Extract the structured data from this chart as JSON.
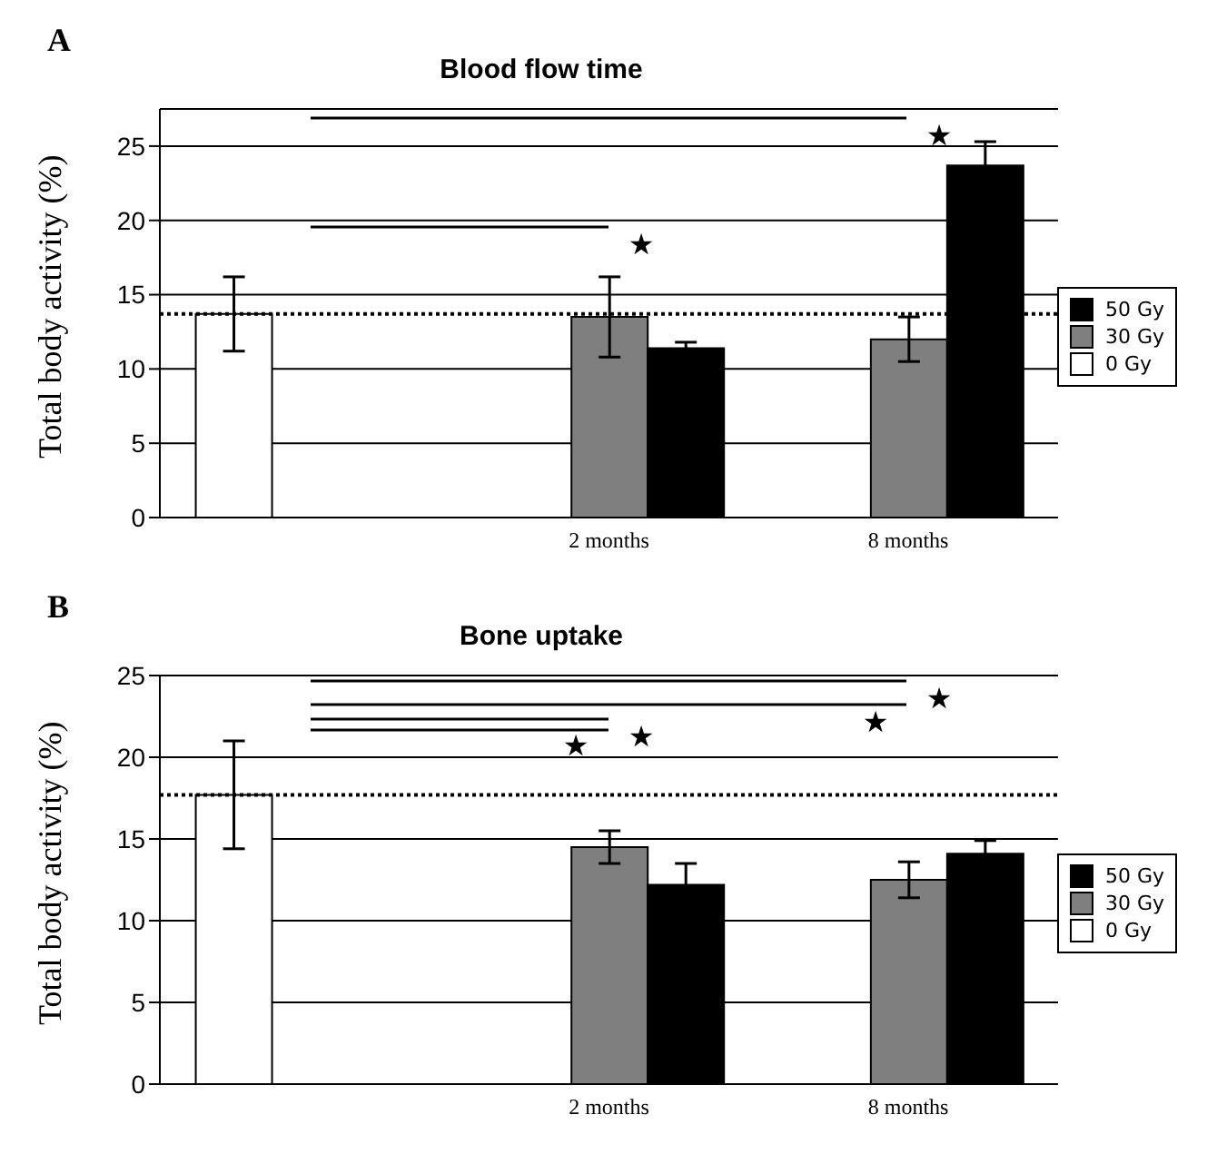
{
  "chart_data": [
    {
      "type": "bar",
      "title": "Blood flow time",
      "ylabel": "Total body activity (%)",
      "categories": [
        null,
        "2 months",
        "8 months"
      ],
      "series": [
        {
          "name": "50 Gy",
          "color": "#000000",
          "values": [
            null,
            11.4,
            23.7
          ],
          "errors": [
            null,
            0.4,
            1.6
          ]
        },
        {
          "name": "30 Gy",
          "color": "#7f7f7f",
          "values": [
            null,
            13.5,
            12.0
          ],
          "errors": [
            null,
            2.7,
            1.5
          ]
        },
        {
          "name": "0 Gy",
          "color": "#ffffff",
          "values": [
            13.7,
            null,
            null
          ],
          "errors": [
            2.5,
            null,
            null
          ]
        }
      ],
      "ylim": [
        0,
        27.5
      ],
      "yticks": [
        0,
        5,
        10,
        15,
        20,
        25
      ],
      "grid": "y",
      "legend": "right",
      "ref_lines": [
        {
          "axis": "y",
          "value": 13.7,
          "line_style": "dotted",
          "color": "#000000"
        }
      ],
      "annotations": [
        "A",
        "★",
        "★"
      ]
    },
    {
      "type": "bar",
      "title": "Bone uptake",
      "ylabel": "Total body activity (%)",
      "categories": [
        null,
        "2 months",
        "8 months"
      ],
      "series": [
        {
          "name": "50 Gy",
          "color": "#000000",
          "values": [
            null,
            12.2,
            14.1
          ],
          "errors": [
            null,
            1.3,
            0.8
          ]
        },
        {
          "name": "30 Gy",
          "color": "#7f7f7f",
          "values": [
            null,
            14.5,
            12.5
          ],
          "errors": [
            null,
            1.0,
            1.1
          ]
        },
        {
          "name": "0 Gy",
          "color": "#ffffff",
          "values": [
            17.7,
            null,
            null
          ],
          "errors": [
            3.3,
            null,
            null
          ]
        }
      ],
      "ylim": [
        0,
        25
      ],
      "yticks": [
        0,
        5,
        10,
        15,
        20,
        25
      ],
      "grid": "y",
      "legend": "right",
      "ref_lines": [
        {
          "axis": "y",
          "value": 17.7,
          "line_style": "dotted",
          "color": "#000000"
        }
      ],
      "annotations": [
        "B",
        "★",
        "★",
        "★",
        "★"
      ]
    }
  ]
}
